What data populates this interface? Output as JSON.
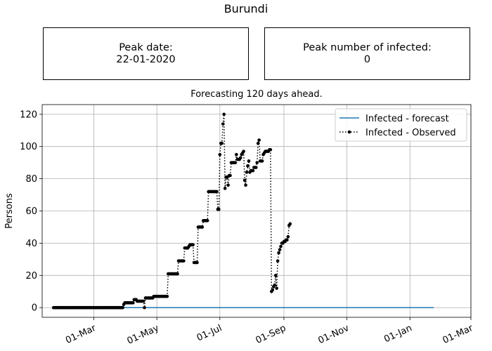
{
  "figure": {
    "title": "Burundi",
    "peak_date_label": "Peak date:",
    "peak_date_value": "22-01-2020",
    "peak_number_label": "Peak number of infected:",
    "peak_number_value": "0"
  },
  "chart_data": {
    "type": "line",
    "title": "Forecasting 120 days ahead.",
    "xlabel": "",
    "ylabel": "Persons",
    "x_type": "date",
    "xlim": [
      "2020-01-11",
      "2021-03-01"
    ],
    "ylim": [
      -6,
      126
    ],
    "x_ticks": [
      {
        "date": "2020-03-01",
        "label": "01-Mar"
      },
      {
        "date": "2020-05-01",
        "label": "01-May"
      },
      {
        "date": "2020-07-01",
        "label": "01-Jul"
      },
      {
        "date": "2020-09-01",
        "label": "01-Sep"
      },
      {
        "date": "2020-11-01",
        "label": "01-Nov"
      },
      {
        "date": "2021-01-01",
        "label": "01-Jan"
      },
      {
        "date": "2021-03-01",
        "label": "01-Mar"
      }
    ],
    "y_ticks": [
      0,
      20,
      40,
      60,
      80,
      100,
      120
    ],
    "grid": true,
    "legend_position": "top-right",
    "colors": {
      "forecast": "#1f77b4",
      "observed": "#000000",
      "grid": "#b0b0b0"
    },
    "series": [
      {
        "name": "Infected - forecast",
        "style": "solid",
        "x": [
          "2020-01-22",
          "2021-01-24"
        ],
        "y": [
          0,
          0
        ]
      },
      {
        "name": "Infected - Observed",
        "style": "dotted-markers",
        "x_start": "2020-01-22",
        "y_by_day": [
          0,
          0,
          0,
          0,
          0,
          0,
          0,
          0,
          0,
          0,
          0,
          0,
          0,
          0,
          0,
          0,
          0,
          0,
          0,
          0,
          0,
          0,
          0,
          0,
          0,
          0,
          0,
          0,
          0,
          0,
          0,
          0,
          0,
          0,
          0,
          0,
          0,
          0,
          0,
          0,
          0,
          0,
          0,
          0,
          0,
          0,
          0,
          0,
          0,
          0,
          0,
          0,
          0,
          0,
          0,
          0,
          0,
          0,
          0,
          0,
          0,
          0,
          0,
          0,
          0,
          0,
          0,
          0,
          2,
          3,
          3,
          3,
          3,
          3,
          3,
          3,
          3,
          3,
          5,
          5,
          5,
          4,
          4,
          4,
          4,
          4,
          4,
          4,
          0,
          6,
          6,
          6,
          6,
          6,
          6,
          6,
          6,
          7,
          7,
          7,
          7,
          7,
          7,
          7,
          7,
          7,
          7,
          7,
          7,
          7,
          7,
          21,
          21,
          21,
          21,
          21,
          21,
          21,
          21,
          21,
          21,
          29,
          29,
          29,
          29,
          29,
          29,
          37,
          37,
          37,
          37,
          38,
          39,
          39,
          39,
          39,
          28,
          28,
          28,
          28,
          50,
          50,
          50,
          50,
          50,
          54,
          54,
          54,
          54,
          54,
          72,
          72,
          72,
          72,
          72,
          72,
          72,
          72,
          72,
          61,
          61,
          95,
          102,
          102,
          114,
          120,
          74,
          81,
          81,
          76,
          82,
          82,
          90,
          90,
          90,
          90,
          90,
          95,
          92,
          92,
          92,
          93,
          95,
          96,
          97,
          79,
          76,
          84,
          88,
          91,
          84,
          85,
          85,
          85,
          87,
          87,
          87,
          90,
          102,
          104,
          91,
          91,
          91,
          95,
          96,
          97,
          97,
          97,
          97,
          98,
          98,
          10,
          11,
          13,
          14,
          20,
          12,
          29,
          34,
          36,
          38,
          40,
          40,
          41,
          41,
          42,
          42,
          44,
          51,
          52
        ]
      }
    ]
  }
}
